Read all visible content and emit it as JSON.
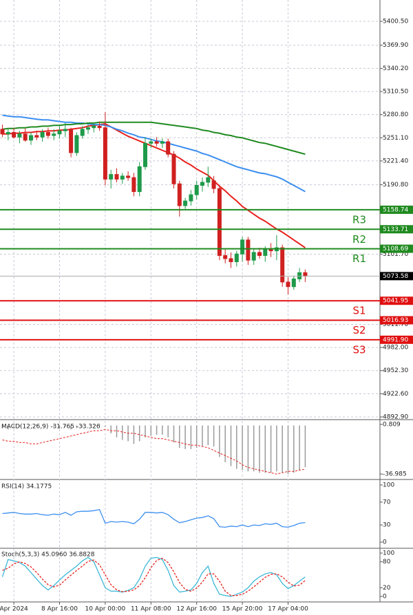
{
  "chart_data": [
    {
      "type": "candlestick",
      "categories": [
        null,
        null,
        "Apr 2024",
        null,
        null,
        null,
        null,
        null,
        null,
        null,
        "8 Apr 16:00",
        null,
        null,
        null,
        null,
        null,
        null,
        null,
        "10 Apr 00:00",
        null,
        null,
        null,
        null,
        null,
        null,
        null,
        "11 Apr 08:00",
        null,
        null,
        null,
        null,
        null,
        null,
        null,
        "12 Apr 16:00",
        null,
        null,
        null,
        null,
        null,
        null,
        null,
        "15 Apr 20:00",
        null,
        null,
        null,
        null,
        null,
        null,
        null,
        "17 Apr 04:00",
        null,
        null,
        null
      ],
      "open": [
        5262,
        5256,
        5258,
        5252,
        5256,
        5248,
        5254,
        5252,
        5258,
        5254,
        5256,
        5260,
        5262,
        5232,
        5254,
        5262,
        5264,
        5266,
        5264,
        5198,
        5204,
        5198,
        5202,
        5200,
        5182,
        5214,
        5244,
        5246,
        5244,
        5246,
        5230,
        5192,
        5164,
        5170,
        5178,
        5190,
        5194,
        5196,
        5186,
        5100,
        5096,
        5092,
        5102,
        5120,
        5094,
        5104,
        5100,
        5108,
        5106,
        5110,
        5066,
        5060,
        5070,
        5078
      ],
      "high": [
        5268,
        5262,
        5264,
        5260,
        5263,
        5258,
        5260,
        5262,
        5264,
        5262,
        5266,
        5270,
        5264,
        5258,
        5266,
        5268,
        5270,
        5272,
        5284,
        5210,
        5212,
        5206,
        5208,
        5206,
        5220,
        5252,
        5250,
        5252,
        5250,
        5250,
        5234,
        5196,
        5174,
        5184,
        5196,
        5200,
        5214,
        5202,
        5190,
        5108,
        5104,
        5106,
        5124,
        5124,
        5108,
        5110,
        5112,
        5116,
        5126,
        5114,
        5072,
        5074,
        5084,
        5082
      ],
      "low": [
        5252,
        5248,
        5250,
        5244,
        5246,
        5242,
        5248,
        5246,
        5250,
        5248,
        5250,
        5252,
        5226,
        5228,
        5250,
        5256,
        5258,
        5260,
        5190,
        5186,
        5194,
        5192,
        5196,
        5176,
        5176,
        5210,
        5238,
        5240,
        5238,
        5226,
        5186,
        5150,
        5160,
        5164,
        5172,
        5182,
        5188,
        5180,
        5094,
        5090,
        5084,
        5086,
        5092,
        5088,
        5088,
        5096,
        5092,
        5098,
        5094,
        5060,
        5050,
        5056,
        5066,
        5066
      ],
      "close": [
        5256,
        5258,
        5252,
        5256,
        5248,
        5254,
        5252,
        5258,
        5254,
        5256,
        5260,
        5262,
        5232,
        5254,
        5262,
        5264,
        5266,
        5264,
        5198,
        5204,
        5198,
        5202,
        5200,
        5182,
        5214,
        5244,
        5246,
        5244,
        5246,
        5230,
        5192,
        5164,
        5170,
        5178,
        5190,
        5194,
        5200,
        5186,
        5100,
        5096,
        5092,
        5102,
        5120,
        5094,
        5104,
        5100,
        5108,
        5106,
        5110,
        5066,
        5060,
        5070,
        5078,
        5073.58
      ],
      "up_color": "#1e9a4a",
      "down_color": "#d02020",
      "lines": [
        {
          "color": "#e8201c",
          "values": [
            5256,
            5256,
            5257,
            5257,
            5258,
            5258,
            5259,
            5259,
            5260,
            5260,
            5261,
            5261,
            5262,
            5263,
            5264,
            5266,
            5267,
            5268,
            5269,
            5265,
            5261,
            5257,
            5253,
            5250,
            5247,
            5244,
            5241,
            5238,
            5235,
            5232,
            5229,
            5225,
            5220,
            5216,
            5211,
            5207,
            5203,
            5196,
            5189,
            5183,
            5176,
            5170,
            5163,
            5158,
            5153,
            5148,
            5144,
            5139,
            5134,
            5130,
            5125,
            5120,
            5115,
            5110
          ]
        },
        {
          "color": "#3b8ef0",
          "values": [
            5280,
            5279,
            5278,
            5278,
            5277,
            5276,
            5275,
            5274,
            5274,
            5273,
            5272,
            5271,
            5271,
            5270,
            5270,
            5269,
            5268,
            5268,
            5267,
            5265,
            5262,
            5260,
            5257,
            5255,
            5252,
            5251,
            5249,
            5247,
            5246,
            5244,
            5242,
            5240,
            5238,
            5236,
            5234,
            5231,
            5229,
            5226,
            5223,
            5220,
            5217,
            5214,
            5212,
            5210,
            5208,
            5206,
            5205,
            5203,
            5201,
            5198,
            5194,
            5190,
            5186,
            5182
          ]
        },
        {
          "color": "#1f8a1f",
          "values": [
            5262,
            5263,
            5263,
            5264,
            5264,
            5265,
            5265,
            5266,
            5266,
            5267,
            5267,
            5268,
            5268,
            5269,
            5269,
            5270,
            5270,
            5271,
            5271,
            5271,
            5271,
            5271,
            5271,
            5271,
            5271,
            5271,
            5271,
            5270,
            5269,
            5268,
            5267,
            5266,
            5265,
            5264,
            5263,
            5261,
            5260,
            5258,
            5257,
            5255,
            5254,
            5252,
            5251,
            5249,
            5247,
            5245,
            5244,
            5242,
            5240,
            5238,
            5236,
            5234,
            5232,
            5230
          ]
        }
      ],
      "levels": [
        {
          "label": "R3",
          "value": 5158.74,
          "color": "#1f8a1f"
        },
        {
          "label": "R2",
          "value": 5133.71,
          "color": "#1f8a1f"
        },
        {
          "label": "R1",
          "value": 5108.69,
          "color": "#1f8a1f"
        },
        {
          "label": "S1",
          "value": 5041.95,
          "color": "#e01010"
        },
        {
          "label": "S2",
          "value": 5016.93,
          "color": "#e01010"
        },
        {
          "label": "S3",
          "value": 4991.9,
          "value_label": "4991.90",
          "color": "#e01010"
        }
      ],
      "last": 5073.58,
      "ylim": [
        4889.4,
        5427.9
      ],
      "yticks": [
        {
          "value": 5400.5,
          "label": "5400.50"
        },
        {
          "value": 5369.9,
          "label": "5369.90"
        },
        {
          "value": 5340.2,
          "label": "5340.20"
        },
        {
          "value": 5310.5,
          "label": "5310.50"
        },
        {
          "value": 5280.8,
          "label": "5280.80"
        },
        {
          "value": 5251.1,
          "label": "5251.10"
        },
        {
          "value": 5221.4,
          "label": "5221.40"
        },
        {
          "value": 5190.8,
          "label": "5190.80"
        },
        {
          "value": 5101.7,
          "label": "5101.70"
        },
        {
          "value": 5011.7,
          "label": "5011.70"
        },
        {
          "value": 4982,
          "label": "4982.00"
        },
        {
          "value": 4952.3,
          "label": "4952.30"
        },
        {
          "value": 4922.6,
          "label": "4922.60"
        },
        {
          "value": 4892.9,
          "label": "4892.90"
        }
      ],
      "grid": true
    },
    {
      "type": "macd",
      "title": "MACD(12,26,9) -31.765 -33.326",
      "series": [
        {
          "style": "bar",
          "color": "#9a9a9a",
          "values": [
            -2,
            -3,
            -2,
            -1,
            0,
            0.5,
            0.8,
            0.5,
            0,
            -1,
            -2,
            -1,
            -3,
            -2,
            -1,
            0,
            0.5,
            0.8,
            -1,
            -6,
            -9,
            -11,
            -12,
            -14,
            -12,
            -9,
            -8,
            -7,
            -7,
            -9,
            -13,
            -17,
            -18,
            -18,
            -17,
            -16,
            -15,
            -16,
            -24,
            -28,
            -31,
            -33,
            -34,
            -35,
            -35,
            -36,
            -36,
            -36,
            -35,
            -36,
            -37,
            -36,
            -34,
            -31.765
          ]
        },
        {
          "style": "dashed",
          "color": "#e8201c",
          "values": [
            -11,
            -12,
            -12,
            -13,
            -13,
            -14,
            -14,
            -13,
            -12,
            -11,
            -10,
            -9,
            -8,
            -7,
            -6,
            -5,
            -4,
            -4,
            -3,
            -4,
            -4,
            -5,
            -6,
            -6,
            -7,
            -8,
            -9,
            -10,
            -10,
            -11,
            -12,
            -13,
            -14,
            -15,
            -15,
            -16,
            -17,
            -19,
            -21,
            -23,
            -25,
            -27,
            -30,
            -32,
            -33,
            -34,
            -35,
            -36,
            -37,
            -36,
            -35,
            -35,
            -34,
            -33.326
          ]
        }
      ],
      "ylim": [
        -40.1,
        3.4
      ],
      "yticks": [
        0.809,
        -36.985
      ]
    },
    {
      "type": "line",
      "title": "RSI(14) 34.1775",
      "series": [
        {
          "style": "solid",
          "color": "#3b8ef0",
          "values": [
            50,
            51,
            52,
            50,
            49,
            49,
            50,
            48,
            47,
            49,
            48,
            52,
            47,
            53,
            54,
            54,
            55,
            57,
            33,
            36,
            35,
            36,
            35,
            32,
            40,
            52,
            52,
            51,
            52,
            48,
            40,
            34,
            36,
            39,
            42,
            43,
            46,
            41,
            27,
            26,
            28,
            27,
            30,
            27,
            30,
            29,
            32,
            31,
            33,
            27,
            26,
            29,
            33,
            34.1775
          ]
        }
      ],
      "ylim": [
        -8.4,
        107.2
      ],
      "yticks": [
        100,
        70,
        30,
        0
      ]
    },
    {
      "type": "line",
      "title": "Stoch(5,3,3) 45.0960 36.8828",
      "series": [
        {
          "style": "solid",
          "color": "#3bb8d8",
          "values": [
            45,
            85,
            82,
            78,
            70,
            55,
            40,
            25,
            15,
            25,
            38,
            50,
            60,
            70,
            82,
            90,
            80,
            50,
            20,
            12,
            12,
            10,
            14,
            20,
            40,
            70,
            88,
            90,
            85,
            60,
            25,
            10,
            12,
            15,
            30,
            55,
            70,
            30,
            5,
            2,
            0,
            5,
            10,
            20,
            35,
            45,
            52,
            55,
            50,
            30,
            18,
            25,
            35,
            45.096
          ]
        },
        {
          "style": "dashed",
          "color": "#e8201c",
          "values": [
            60,
            65,
            75,
            80,
            76,
            68,
            55,
            40,
            27,
            22,
            26,
            38,
            49,
            60,
            70,
            81,
            84,
            73,
            50,
            27,
            15,
            11,
            12,
            15,
            25,
            43,
            66,
            83,
            88,
            78,
            57,
            32,
            16,
            12,
            19,
            33,
            52,
            52,
            35,
            12,
            2,
            2,
            5,
            12,
            22,
            33,
            44,
            51,
            52,
            45,
            33,
            24,
            26,
            36.8828
          ]
        }
      ],
      "ylim": [
        -12.7,
        109.5
      ],
      "yticks": [
        100,
        80,
        20,
        0
      ]
    }
  ]
}
